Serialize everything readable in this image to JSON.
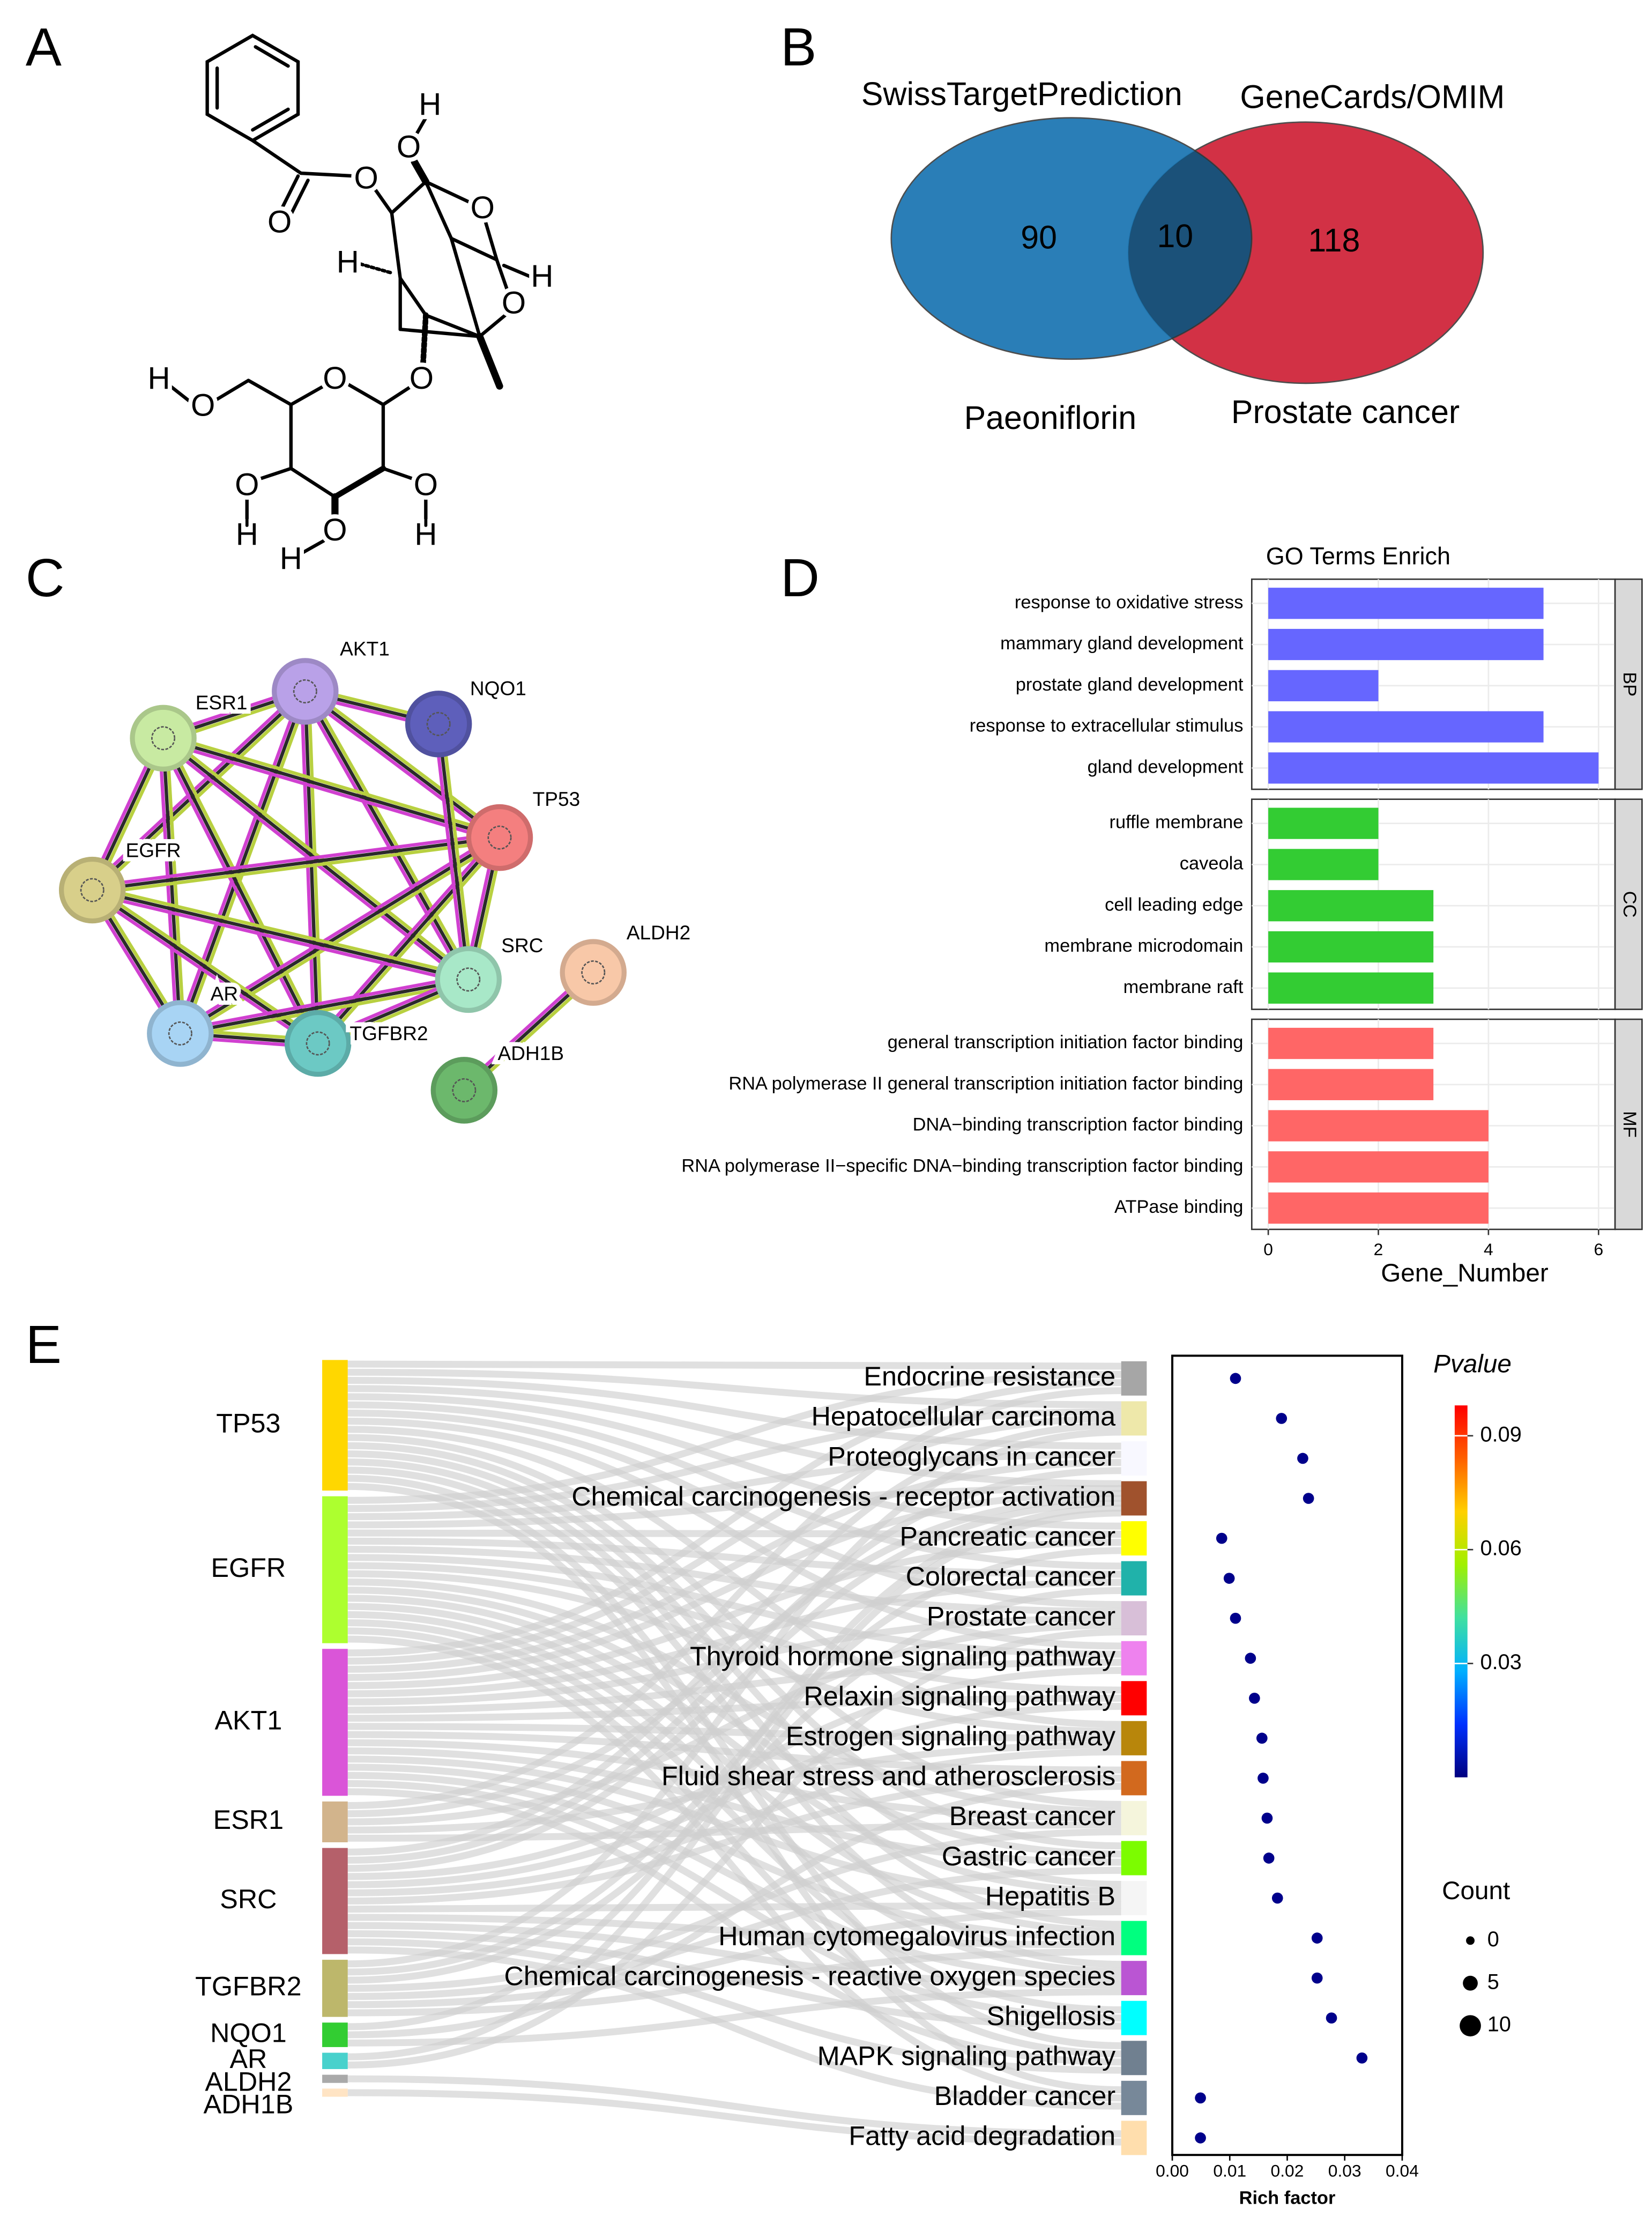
{
  "panel_labels": [
    "A",
    "B",
    "C",
    "D",
    "E"
  ],
  "structure": {
    "atoms": [
      "O",
      "O",
      "O",
      "H",
      "O",
      "H",
      "H",
      "O",
      "O",
      "O",
      "H",
      "O",
      "O",
      "O",
      "H",
      "H",
      "O",
      "H"
    ],
    "atom_colors": {
      "O": "#e8141a",
      "H": "#555555"
    }
  },
  "chart_data": [
    {
      "type": "venn",
      "sets": [
        {
          "name": "SwissTargetPrediction",
          "label": "Paeoniflorin",
          "color": "#1f78b4",
          "value": 90
        },
        {
          "name": "GeneCards/OMIM",
          "label": "Prostate cancer",
          "color": "#d0273c",
          "value": 118
        }
      ],
      "overlap": 10
    },
    {
      "type": "network",
      "nodes": [
        {
          "name": "AKT1",
          "color": "#b9a1e8"
        },
        {
          "name": "NQO1",
          "color": "#5e5fbb"
        },
        {
          "name": "ESR1",
          "color": "#c8eaa2"
        },
        {
          "name": "TP53",
          "color": "#f47f7f"
        },
        {
          "name": "EGFR",
          "color": "#d8cf8a"
        },
        {
          "name": "SRC",
          "color": "#a8e8c8"
        },
        {
          "name": "ALDH2",
          "color": "#f8c8a8"
        },
        {
          "name": "AR",
          "color": "#a8d4f4"
        },
        {
          "name": "TGFBR2",
          "color": "#6cc9c4"
        },
        {
          "name": "ADH1B",
          "color": "#6cb86c"
        }
      ],
      "edges": [
        [
          "AKT1",
          "NQO1"
        ],
        [
          "AKT1",
          "ESR1"
        ],
        [
          "AKT1",
          "TP53"
        ],
        [
          "AKT1",
          "EGFR"
        ],
        [
          "AKT1",
          "SRC"
        ],
        [
          "AKT1",
          "AR"
        ],
        [
          "AKT1",
          "TGFBR2"
        ],
        [
          "ESR1",
          "TP53"
        ],
        [
          "ESR1",
          "EGFR"
        ],
        [
          "ESR1",
          "SRC"
        ],
        [
          "ESR1",
          "AR"
        ],
        [
          "ESR1",
          "TGFBR2"
        ],
        [
          "TP53",
          "EGFR"
        ],
        [
          "TP53",
          "SRC"
        ],
        [
          "TP53",
          "AR"
        ],
        [
          "TP53",
          "TGFBR2"
        ],
        [
          "EGFR",
          "SRC"
        ],
        [
          "EGFR",
          "AR"
        ],
        [
          "EGFR",
          "TGFBR2"
        ],
        [
          "SRC",
          "AR"
        ],
        [
          "SRC",
          "TGFBR2"
        ],
        [
          "AR",
          "TGFBR2"
        ],
        [
          "NQO1",
          "SRC"
        ],
        [
          "ALDH2",
          "ADH1B"
        ]
      ]
    },
    {
      "type": "bar",
      "orientation": "horizontal",
      "title": "GO Terms Enrich",
      "xlabel": "Gene_Number",
      "xlim": [
        -0.3,
        6.3
      ],
      "xticks": [
        0,
        2,
        4,
        6
      ],
      "grid": true,
      "series": [
        {
          "name": "BP",
          "color": "#6666ff",
          "categories": [
            "response to oxidative stress",
            "mammary gland development",
            "prostate gland development",
            "response to extracellular stimulus",
            "gland development"
          ],
          "values": [
            5,
            5,
            2,
            5,
            6
          ]
        },
        {
          "name": "CC",
          "color": "#33cc33",
          "categories": [
            "ruffle membrane",
            "caveola",
            "cell leading edge",
            "membrane microdomain",
            "membrane raft"
          ],
          "values": [
            2,
            2,
            3,
            3,
            3
          ]
        },
        {
          "name": "MF",
          "color": "#ff6666",
          "categories": [
            "general transcription initiation factor binding",
            "RNA polymerase II general transcription initiation factor binding",
            "DNA−binding transcription factor binding",
            "RNA polymerase II−specific DNA−binding transcription factor binding",
            "ATPase binding"
          ],
          "values": [
            3,
            3,
            4,
            4,
            4
          ]
        }
      ]
    },
    {
      "type": "sankey",
      "sources": [
        {
          "name": "TP53",
          "color": "#ffd700",
          "targets": [
            0,
            1,
            2,
            3,
            4,
            5,
            6,
            7,
            9,
            11,
            12,
            13,
            14,
            15,
            17,
            18
          ]
        },
        {
          "name": "EGFR",
          "color": "#adff2f",
          "targets": [
            0,
            1,
            2,
            3,
            4,
            5,
            6,
            7,
            8,
            9,
            11,
            12,
            13,
            14,
            15,
            16,
            17,
            18
          ]
        },
        {
          "name": "AKT1",
          "color": "#da55d8",
          "targets": [
            0,
            1,
            2,
            3,
            4,
            5,
            6,
            7,
            8,
            9,
            10,
            11,
            12,
            13,
            14,
            15,
            16,
            17
          ]
        },
        {
          "name": "ESR1",
          "color": "#d2b48c",
          "targets": [
            0,
            3,
            6,
            9,
            11
          ]
        },
        {
          "name": "SRC",
          "color": "#b5606a",
          "targets": [
            1,
            2,
            3,
            7,
            8,
            9,
            10,
            13,
            14,
            15,
            16,
            17,
            18
          ]
        },
        {
          "name": "TGFBR2",
          "color": "#bdb76b",
          "targets": [
            1,
            4,
            5,
            11,
            12,
            13,
            14
          ]
        },
        {
          "name": "NQO1",
          "color": "#32cd32",
          "targets": [
            3,
            10,
            15
          ]
        },
        {
          "name": "AR",
          "color": "#48d1cc",
          "targets": [
            3,
            6
          ]
        },
        {
          "name": "ALDH2",
          "color": "#a9a9a9",
          "targets": [
            19
          ]
        },
        {
          "name": "ADH1B",
          "color": "#ffe4c4",
          "targets": [
            19
          ]
        }
      ],
      "targets": [
        {
          "name": "Endocrine resistance",
          "color": "#a6a6a6"
        },
        {
          "name": "Hepatocellular carcinoma",
          "color": "#eee8aa"
        },
        {
          "name": "Proteoglycans in cancer",
          "color": "#f8f8ff"
        },
        {
          "name": "Chemical carcinogenesis - receptor activation",
          "color": "#a0522d"
        },
        {
          "name": "Pancreatic cancer",
          "color": "#ffff00"
        },
        {
          "name": "Colorectal cancer",
          "color": "#20b2aa"
        },
        {
          "name": "Prostate cancer",
          "color": "#d8bfd8"
        },
        {
          "name": "Thyroid hormone signaling pathway",
          "color": "#ee82ee"
        },
        {
          "name": "Relaxin signaling pathway",
          "color": "#ff0000"
        },
        {
          "name": "Estrogen signaling pathway",
          "color": "#b8860b"
        },
        {
          "name": "Fluid shear stress and atherosclerosis",
          "color": "#d2691e"
        },
        {
          "name": "Breast cancer",
          "color": "#f5f5dc"
        },
        {
          "name": "Gastric cancer",
          "color": "#7cfc00"
        },
        {
          "name": "Hepatitis B",
          "color": "#f5f5f5"
        },
        {
          "name": "Human cytomegalovirus infection",
          "color": "#00ff7f"
        },
        {
          "name": "Chemical carcinogenesis - reactive oxygen species",
          "color": "#ba55d3"
        },
        {
          "name": "Shigellosis",
          "color": "#00ffff"
        },
        {
          "name": "MAPK signaling pathway",
          "color": "#708090"
        },
        {
          "name": "Bladder cancer",
          "color": "#778899"
        },
        {
          "name": "Fatty acid degradation",
          "color": "#ffdead"
        }
      ]
    },
    {
      "type": "scatter",
      "xlabel": "Rich factor",
      "color": "#00008b",
      "x": [
        0.011,
        0.019,
        0.0227,
        0.0237,
        0.0086,
        0.0099,
        0.011,
        0.0136,
        0.0143,
        0.0156,
        0.0158,
        0.0165,
        0.0168,
        0.0183,
        0.0252,
        0.0252,
        0.0277,
        0.033,
        0.0049,
        0.0049
      ],
      "sizes": [
        2,
        2,
        2,
        2,
        2,
        2,
        2,
        2,
        2,
        2,
        2,
        2,
        2,
        2,
        2,
        2,
        2,
        2,
        2,
        2
      ],
      "xlim": [
        0,
        0.04
      ],
      "xticks": [
        {
          "value": 0,
          "label": "0.00"
        },
        0.01,
        0.02,
        0.03,
        0.04
      ],
      "colorbar": {
        "title": "Pvalue",
        "lim": [
          0,
          0.098
        ],
        "ticks": [
          0.03,
          0.06,
          0.09
        ],
        "colors": [
          "#00007f",
          "#0030ff",
          "#00b0ff",
          "#40e0a0",
          "#a0f000",
          "#ffd000",
          "#ff6000",
          "#ff0000"
        ]
      },
      "size_legend": {
        "title": "Count",
        "values": [
          0,
          5,
          10
        ]
      }
    }
  ]
}
